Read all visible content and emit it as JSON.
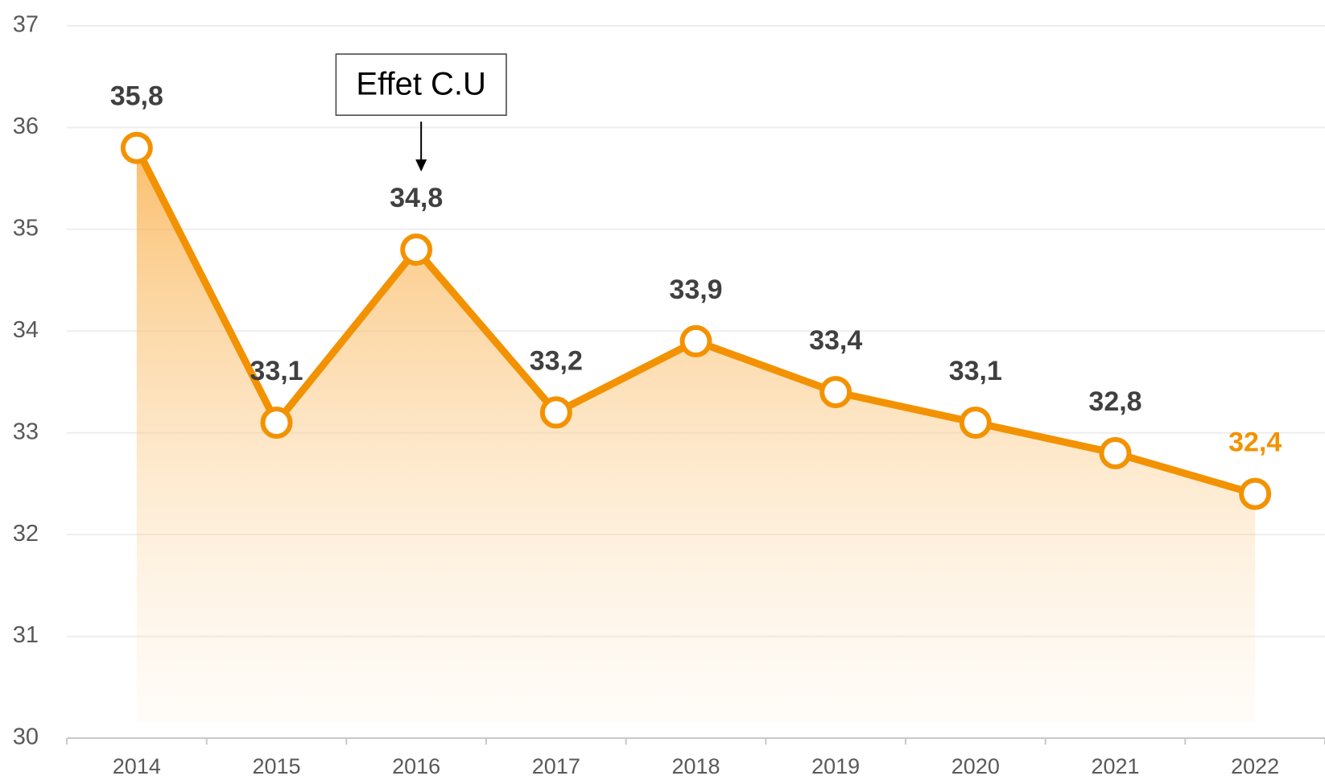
{
  "chart_data": {
    "type": "line",
    "categories": [
      "2014",
      "2015",
      "2016",
      "2017",
      "2018",
      "2019",
      "2020",
      "2021",
      "2022"
    ],
    "values": [
      35.8,
      33.1,
      34.8,
      33.2,
      33.9,
      33.4,
      33.1,
      32.8,
      32.4
    ],
    "value_labels": [
      "35,8",
      "33,1",
      "34,8",
      "33,2",
      "33,9",
      "33,4",
      "33,1",
      "32,8",
      "32,4"
    ],
    "value_label_colors": [
      "#404040",
      "#404040",
      "#404040",
      "#404040",
      "#404040",
      "#404040",
      "#404040",
      "#404040",
      "#f39200"
    ],
    "color": "#f39200",
    "ylim": [
      30,
      37
    ],
    "yticks": [
      30,
      31,
      32,
      33,
      34,
      35,
      36,
      37
    ],
    "grid": true,
    "area": true,
    "annotations": [
      {
        "text": "Effet C.U",
        "x": "2016"
      }
    ]
  }
}
